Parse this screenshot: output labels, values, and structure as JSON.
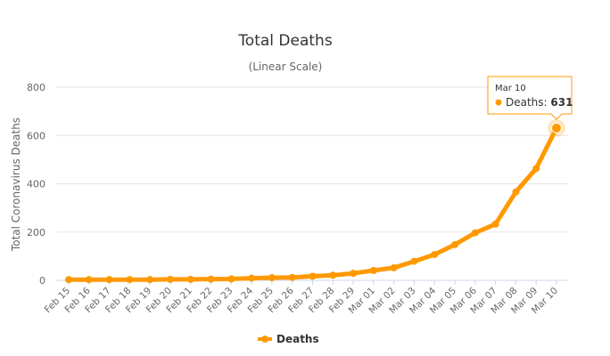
{
  "chart_data": {
    "type": "line",
    "title": "Total Deaths",
    "subtitle": "(Linear Scale)",
    "xlabel": "",
    "ylabel": "Total Coronavirus Deaths",
    "ylim": [
      0,
      800
    ],
    "yticks": [
      0,
      200,
      400,
      600,
      800
    ],
    "grid": true,
    "legend_position": "bottom-center",
    "categories": [
      "Feb 15",
      "Feb 16",
      "Feb 17",
      "Feb 18",
      "Feb 19",
      "Feb 20",
      "Feb 21",
      "Feb 22",
      "Feb 23",
      "Feb 24",
      "Feb 25",
      "Feb 26",
      "Feb 27",
      "Feb 28",
      "Feb 29",
      "Mar 01",
      "Mar 02",
      "Mar 03",
      "Mar 04",
      "Mar 05",
      "Mar 06",
      "Mar 07",
      "Mar 08",
      "Mar 09",
      "Mar 10"
    ],
    "series": [
      {
        "name": "Deaths",
        "color": "#ff9900",
        "values": [
          3,
          3,
          3,
          3,
          3,
          4,
          4,
          5,
          6,
          9,
          11,
          12,
          17,
          21,
          29,
          41,
          52,
          79,
          107,
          148,
          197,
          233,
          366,
          463,
          631
        ]
      }
    ],
    "tooltip": {
      "date": "Mar 10",
      "series": "Deaths",
      "value": "631"
    }
  }
}
